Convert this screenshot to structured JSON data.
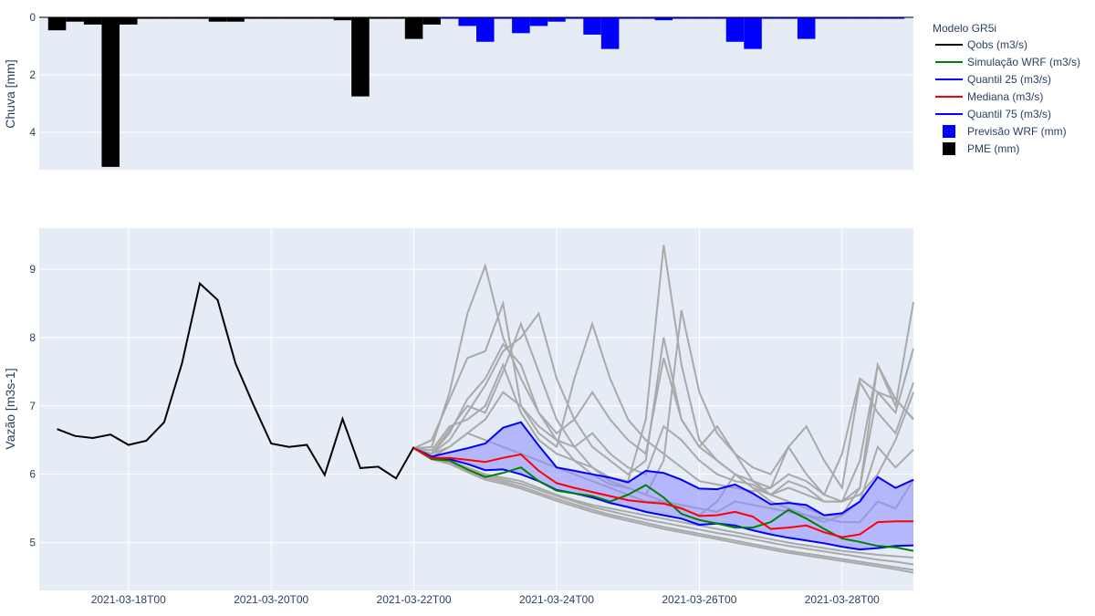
{
  "chart_data": {
    "type": "line",
    "legend": {
      "title": "Modelo GR5i",
      "placement": "right",
      "entries": [
        {
          "label": "Qobs (m3/s)",
          "color": "#000000",
          "kind": "line"
        },
        {
          "label": "Simulação WRF (m3/s)",
          "color": "#008000",
          "kind": "line"
        },
        {
          "label": "Quantil 25 (m3/s)",
          "color": "#0000ff",
          "kind": "line"
        },
        {
          "label": "Mediana (m3/s)",
          "color": "#ff0000",
          "kind": "line"
        },
        {
          "label": "Quantil 75 (m3/s)",
          "color": "#0000ff",
          "kind": "line"
        },
        {
          "label": "Previsão WRF (mm)",
          "color": "#0000ff",
          "kind": "box"
        },
        {
          "label": "PME (mm)",
          "color": "#000000",
          "kind": "box"
        }
      ]
    },
    "grid": true,
    "colors": {
      "background": "#e5ecf6",
      "ensemble": "#a9a9a9",
      "band": "#8c8cff"
    },
    "rain": {
      "ylabel": "Chuva [mm]",
      "reversed": true,
      "ylim": [
        0,
        5.3
      ],
      "yticks": [
        0,
        2,
        4
      ],
      "pme": [
        {
          "t": "2021-03-17T00",
          "v": 0.45
        },
        {
          "t": "2021-03-17T06",
          "v": 0.15
        },
        {
          "t": "2021-03-17T12",
          "v": 0.25
        },
        {
          "t": "2021-03-17T18",
          "v": 5.2
        },
        {
          "t": "2021-03-18T00",
          "v": 0.25
        },
        {
          "t": "2021-03-18T06",
          "v": 0.05
        },
        {
          "t": "2021-03-18T12",
          "v": 0.05
        },
        {
          "t": "2021-03-18T18",
          "v": 0.05
        },
        {
          "t": "2021-03-19T00",
          "v": 0.05
        },
        {
          "t": "2021-03-19T06",
          "v": 0.15
        },
        {
          "t": "2021-03-19T12",
          "v": 0.15
        },
        {
          "t": "2021-03-19T18",
          "v": 0.05
        },
        {
          "t": "2021-03-20T00",
          "v": 0.05
        },
        {
          "t": "2021-03-20T06",
          "v": 0.05
        },
        {
          "t": "2021-03-20T12",
          "v": 0.05
        },
        {
          "t": "2021-03-20T18",
          "v": 0.05
        },
        {
          "t": "2021-03-21T00",
          "v": 0.1
        },
        {
          "t": "2021-03-21T06",
          "v": 2.75
        },
        {
          "t": "2021-03-21T12",
          "v": 0.05
        },
        {
          "t": "2021-03-21T18",
          "v": 0.05
        },
        {
          "t": "2021-03-22T00",
          "v": 0.75
        },
        {
          "t": "2021-03-22T06",
          "v": 0.25
        }
      ],
      "wrf": [
        {
          "t": "2021-03-22T12",
          "v": 0.05
        },
        {
          "t": "2021-03-22T18",
          "v": 0.3
        },
        {
          "t": "2021-03-23T00",
          "v": 0.85
        },
        {
          "t": "2021-03-23T06",
          "v": 0.05
        },
        {
          "t": "2021-03-23T12",
          "v": 0.55
        },
        {
          "t": "2021-03-23T18",
          "v": 0.3
        },
        {
          "t": "2021-03-24T00",
          "v": 0.15
        },
        {
          "t": "2021-03-24T06",
          "v": 0.05
        },
        {
          "t": "2021-03-24T12",
          "v": 0.6
        },
        {
          "t": "2021-03-24T18",
          "v": 1.1
        },
        {
          "t": "2021-03-25T00",
          "v": 0.05
        },
        {
          "t": "2021-03-25T06",
          "v": 0.05
        },
        {
          "t": "2021-03-25T12",
          "v": 0.1
        },
        {
          "t": "2021-03-25T18",
          "v": 0.05
        },
        {
          "t": "2021-03-26T00",
          "v": 0.05
        },
        {
          "t": "2021-03-26T06",
          "v": 0.05
        },
        {
          "t": "2021-03-26T12",
          "v": 0.85
        },
        {
          "t": "2021-03-26T18",
          "v": 1.1
        },
        {
          "t": "2021-03-27T00",
          "v": 0.05
        },
        {
          "t": "2021-03-27T06",
          "v": 0.05
        },
        {
          "t": "2021-03-27T12",
          "v": 0.75
        },
        {
          "t": "2021-03-27T18",
          "v": 0.05
        },
        {
          "t": "2021-03-28T00",
          "v": 0.05
        },
        {
          "t": "2021-03-28T06",
          "v": 0.05
        },
        {
          "t": "2021-03-28T12",
          "v": 0.05
        },
        {
          "t": "2021-03-28T18",
          "v": 0.05
        }
      ]
    },
    "flow": {
      "ylabel": "Vazão [m3s-1]",
      "ylim": [
        4.3,
        9.6
      ],
      "yticks": [
        5,
        6,
        7,
        8,
        9
      ],
      "xlim": [
        "2021-03-16T18",
        "2021-03-29T00"
      ],
      "xticks": [
        "2021-03-18T00",
        "2021-03-20T00",
        "2021-03-22T00",
        "2021-03-24T00",
        "2021-03-26T00",
        "2021-03-28T00"
      ],
      "obs": {
        "t": [
          "2021-03-17T00",
          "2021-03-17T06",
          "2021-03-17T12",
          "2021-03-17T18",
          "2021-03-18T00",
          "2021-03-18T06",
          "2021-03-18T12",
          "2021-03-18T18",
          "2021-03-19T00",
          "2021-03-19T06",
          "2021-03-19T12",
          "2021-03-19T18",
          "2021-03-20T00",
          "2021-03-20T06",
          "2021-03-20T12",
          "2021-03-20T18",
          "2021-03-21T00",
          "2021-03-21T06",
          "2021-03-21T12",
          "2021-03-21T18",
          "2021-03-22T00"
        ],
        "v": [
          6.66,
          6.56,
          6.53,
          6.58,
          6.43,
          6.49,
          6.76,
          7.62,
          8.79,
          8.55,
          7.62,
          7.02,
          6.45,
          6.4,
          6.43,
          5.99,
          6.81,
          6.09,
          6.11,
          5.94,
          6.4
        ]
      },
      "forecast_t": [
        "2021-03-22T00",
        "2021-03-22T06",
        "2021-03-22T12",
        "2021-03-22T18",
        "2021-03-23T00",
        "2021-03-23T06",
        "2021-03-23T12",
        "2021-03-23T18",
        "2021-03-24T00",
        "2021-03-24T06",
        "2021-03-24T12",
        "2021-03-24T18",
        "2021-03-25T00",
        "2021-03-25T06",
        "2021-03-25T12",
        "2021-03-25T18",
        "2021-03-26T00",
        "2021-03-26T06",
        "2021-03-26T12",
        "2021-03-26T18",
        "2021-03-27T00",
        "2021-03-27T06",
        "2021-03-27T12",
        "2021-03-27T18",
        "2021-03-28T00",
        "2021-03-28T06",
        "2021-03-28T12",
        "2021-03-28T18",
        "2021-03-29T00"
      ],
      "sim_wrf": [
        6.38,
        6.22,
        6.2,
        6.07,
        5.96,
        6.02,
        6.1,
        5.9,
        5.76,
        5.72,
        5.68,
        5.6,
        5.7,
        5.84,
        5.66,
        5.42,
        5.33,
        5.28,
        5.22,
        5.22,
        5.3,
        5.48,
        5.35,
        5.2,
        5.06,
        5.01,
        4.95,
        4.93,
        4.88
      ],
      "q25": [
        6.38,
        6.25,
        6.22,
        6.15,
        6.06,
        6.07,
        6.0,
        5.9,
        5.77,
        5.72,
        5.66,
        5.58,
        5.52,
        5.45,
        5.4,
        5.35,
        5.26,
        5.28,
        5.25,
        5.18,
        5.12,
        5.07,
        5.03,
        4.99,
        4.94,
        4.9,
        4.92,
        4.95,
        4.96
      ],
      "median": [
        6.38,
        6.24,
        6.24,
        6.21,
        6.18,
        6.24,
        6.29,
        6.05,
        5.87,
        5.8,
        5.74,
        5.68,
        5.62,
        5.59,
        5.57,
        5.5,
        5.39,
        5.4,
        5.45,
        5.38,
        5.2,
        5.22,
        5.25,
        5.15,
        5.08,
        5.12,
        5.3,
        5.31,
        5.31
      ],
      "q75": [
        6.38,
        6.26,
        6.32,
        6.38,
        6.45,
        6.68,
        6.76,
        6.42,
        6.1,
        6.05,
        6.0,
        5.95,
        5.88,
        6.05,
        6.02,
        5.92,
        5.79,
        5.78,
        5.85,
        5.72,
        5.56,
        5.58,
        5.55,
        5.4,
        5.43,
        5.6,
        5.96,
        5.8,
        5.92
      ],
      "ensemble": [
        [
          6.38,
          6.3,
          6.65,
          7.0,
          6.9,
          7.5,
          8.2,
          7.5,
          6.8,
          6.4,
          6.1,
          5.95,
          5.9,
          6.8,
          9.35,
          7.6,
          6.5,
          6.2,
          6.0,
          5.8,
          5.7,
          5.8,
          5.7,
          5.6,
          5.6,
          5.8,
          7.6,
          7.0,
          8.52
        ],
        [
          6.38,
          6.4,
          7.2,
          8.35,
          9.05,
          8.0,
          7.4,
          6.9,
          6.5,
          6.2,
          6.0,
          5.85,
          5.8,
          5.7,
          6.2,
          8.4,
          7.2,
          6.6,
          6.3,
          6.1,
          6.0,
          6.4,
          6.0,
          5.7,
          6.3,
          7.4,
          7.2,
          6.9,
          7.84
        ],
        [
          6.38,
          6.5,
          7.1,
          7.7,
          7.8,
          8.5,
          7.0,
          6.6,
          6.4,
          7.4,
          8.2,
          7.4,
          6.8,
          6.5,
          6.3,
          6.1,
          5.9,
          5.85,
          5.8,
          5.75,
          5.8,
          6.0,
          5.9,
          5.7,
          5.6,
          5.7,
          6.0,
          6.5,
          7.2
        ],
        [
          6.38,
          6.3,
          6.5,
          6.9,
          7.3,
          7.8,
          8.0,
          8.35,
          7.4,
          6.8,
          6.4,
          6.2,
          6.0,
          6.2,
          8.0,
          6.8,
          6.4,
          6.2,
          6.0,
          5.9,
          5.8,
          6.4,
          6.7,
          6.2,
          5.8,
          7.35,
          6.9,
          6.6,
          7.34
        ],
        [
          6.38,
          6.3,
          6.6,
          7.1,
          7.4,
          7.9,
          7.6,
          6.9,
          6.6,
          6.8,
          7.2,
          6.8,
          6.5,
          6.3,
          7.7,
          6.8,
          6.4,
          6.7,
          6.3,
          5.9,
          5.7,
          5.9,
          5.8,
          5.6,
          5.6,
          6.2,
          7.6,
          7.1,
          6.81
        ],
        [
          6.38,
          6.35,
          6.7,
          6.8,
          7.0,
          7.6,
          6.9,
          6.5,
          6.3,
          6.2,
          6.1,
          5.9,
          5.8,
          5.7,
          5.6,
          5.5,
          5.4,
          5.6,
          6.0,
          5.8,
          5.6,
          5.5,
          5.4,
          5.3,
          5.4,
          5.6,
          6.4,
          6.1,
          6.36
        ],
        [
          6.38,
          6.25,
          6.4,
          6.6,
          6.8,
          7.2,
          7.0,
          6.7,
          6.5,
          6.4,
          6.6,
          6.3,
          6.1,
          6.0,
          6.7,
          6.5,
          6.2,
          6.0,
          5.9,
          5.85,
          5.7,
          5.6,
          5.5,
          5.4,
          5.4,
          5.8,
          7.2,
          7.1,
          6.8
        ],
        [
          6.38,
          6.3,
          6.4,
          6.6,
          6.5,
          6.4,
          6.3,
          6.2,
          6.1,
          6.0,
          5.9,
          5.8,
          5.7,
          5.6,
          5.6,
          5.55,
          5.5,
          5.45,
          5.6,
          5.55,
          5.5,
          5.45,
          5.4,
          5.35,
          5.3,
          5.3,
          5.6,
          5.5,
          5.92
        ],
        [
          6.38,
          6.25,
          6.2,
          6.1,
          6.0,
          5.95,
          5.9,
          5.8,
          5.7,
          5.62,
          5.55,
          5.5,
          5.45,
          5.4,
          5.35,
          5.3,
          5.25,
          5.2,
          5.15,
          5.1,
          5.05,
          5.0,
          4.96,
          4.92,
          4.88,
          4.85,
          4.82,
          4.8,
          4.78
        ],
        [
          6.38,
          6.24,
          6.18,
          6.08,
          5.98,
          5.92,
          5.86,
          5.77,
          5.68,
          5.6,
          5.52,
          5.46,
          5.4,
          5.34,
          5.29,
          5.24,
          5.19,
          5.14,
          5.1,
          5.05,
          5.0,
          4.95,
          4.91,
          4.87,
          4.83,
          4.79,
          4.75,
          4.72,
          4.68
        ],
        [
          6.38,
          6.23,
          6.16,
          6.05,
          5.95,
          5.89,
          5.82,
          5.73,
          5.64,
          5.56,
          5.48,
          5.41,
          5.35,
          5.29,
          5.23,
          5.18,
          5.13,
          5.08,
          5.03,
          4.98,
          4.93,
          4.88,
          4.84,
          4.8,
          4.76,
          4.72,
          4.68,
          4.64,
          4.6
        ],
        [
          6.38,
          6.22,
          6.15,
          6.03,
          5.92,
          5.86,
          5.79,
          5.7,
          5.61,
          5.53,
          5.45,
          5.38,
          5.32,
          5.26,
          5.2,
          5.15,
          5.1,
          5.05,
          5.0,
          4.95,
          4.9,
          4.85,
          4.81,
          4.77,
          4.73,
          4.69,
          4.65,
          4.61,
          4.56
        ]
      ]
    }
  }
}
